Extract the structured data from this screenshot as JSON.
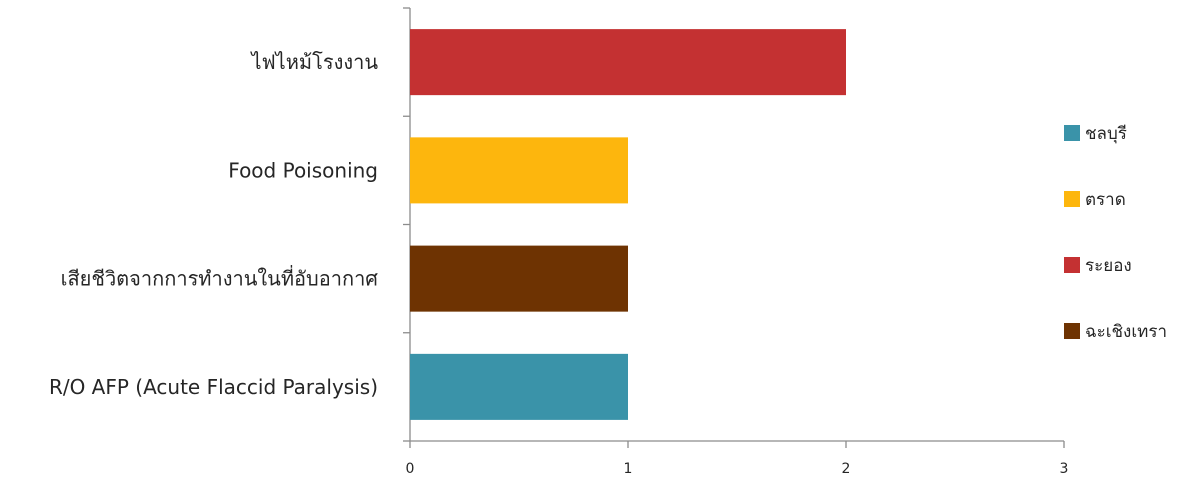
{
  "chart_data": {
    "type": "bar",
    "orientation": "horizontal",
    "title": "",
    "xlabel": "",
    "ylabel": "",
    "xlim": [
      0,
      3
    ],
    "x_ticks": [
      "0",
      "1",
      "2",
      "3"
    ],
    "grid": false,
    "legend_position": "right",
    "categories": [
      "ไฟไหม้โรงงาน",
      "Food Poisoning",
      "เสียชีวิตจากการทำงานในที่อับอากาศ",
      "R/O AFP (Acute Flaccid Paralysis)"
    ],
    "series": [
      {
        "name": "ชลบุรี",
        "color": "#3A93A9",
        "values": [
          0,
          0,
          0,
          1
        ]
      },
      {
        "name": "ตราด",
        "color": "#FDB60D",
        "values": [
          0,
          1,
          0,
          0
        ]
      },
      {
        "name": "ระยอง",
        "color": "#C43132",
        "values": [
          2,
          0,
          0,
          0
        ]
      },
      {
        "name": "ฉะเชิงเทรา",
        "color": "#6E3302",
        "values": [
          0,
          0,
          1,
          0
        ]
      }
    ]
  }
}
